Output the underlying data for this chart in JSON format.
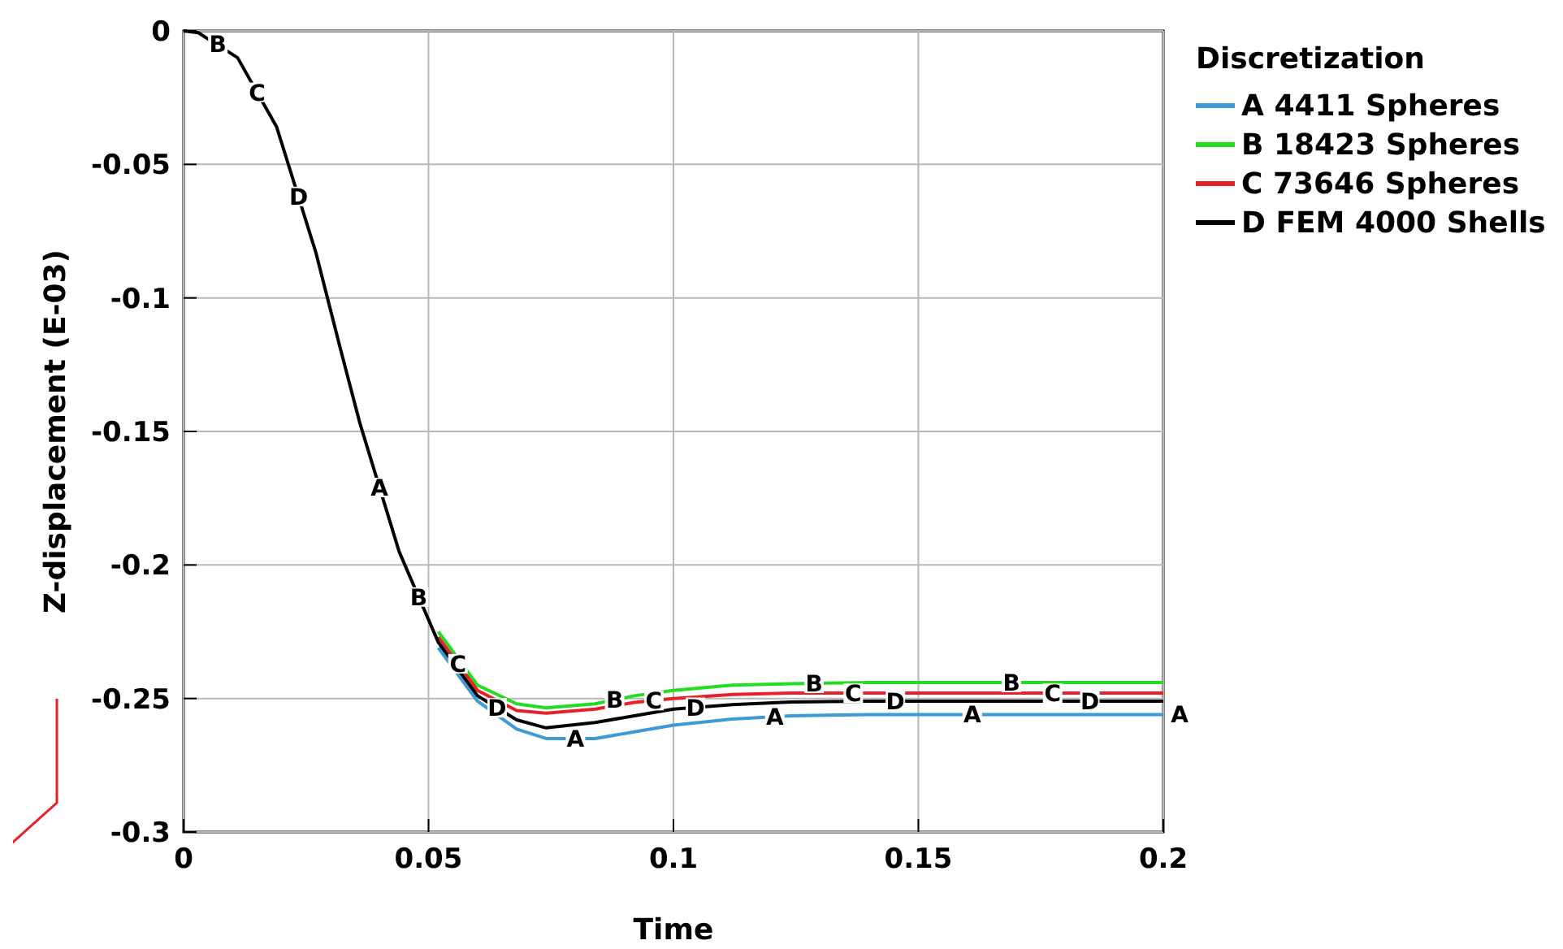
{
  "chart_data": {
    "type": "line",
    "xlabel": "Time",
    "ylabel": "Z-displacement (E-03)",
    "legend_title": "Discretization",
    "legend": "right",
    "grid": true,
    "line_style": "solid",
    "marker": "none",
    "xlim": [
      0,
      0.2
    ],
    "xticks": [
      0,
      0.05,
      0.1,
      0.15,
      0.2
    ],
    "ylim": [
      -0.3,
      0
    ],
    "yticks": [
      0,
      -0.05,
      -0.1,
      -0.15,
      -0.2,
      -0.25,
      -0.3
    ],
    "x": [
      0,
      0.003,
      0.011,
      0.019,
      0.027,
      0.032,
      0.036,
      0.044,
      0.052,
      0.06,
      0.068,
      0.074,
      0.084,
      0.092,
      0.1,
      0.112,
      0.124,
      0.14,
      0.155,
      0.165,
      0.1812,
      0.2
    ],
    "series": [
      {
        "name": "A 4411 Spheres",
        "color": "#3c9ad6",
        "values": [
          null,
          null,
          null,
          null,
          null,
          null,
          null,
          null,
          -0.231,
          -0.251,
          -0.2615,
          -0.265,
          -0.265,
          -0.2625,
          -0.26,
          -0.2577,
          -0.2565,
          -0.256,
          -0.256,
          -0.256,
          -0.256,
          -0.256
        ]
      },
      {
        "name": "B 18423 Spheres",
        "color": "#22dd22",
        "values": [
          null,
          null,
          null,
          null,
          null,
          null,
          null,
          null,
          -0.225,
          -0.245,
          -0.252,
          -0.2535,
          -0.252,
          -0.249,
          -0.247,
          -0.245,
          -0.2445,
          -0.244,
          -0.244,
          -0.244,
          -0.244,
          -0.244
        ]
      },
      {
        "name": "C 73646 Spheres",
        "color": "#e8202a",
        "values": [
          null,
          null,
          null,
          null,
          null,
          null,
          null,
          null,
          -0.227,
          -0.247,
          -0.2545,
          -0.2555,
          -0.254,
          -0.2515,
          -0.25,
          -0.2485,
          -0.248,
          -0.248,
          -0.248,
          -0.248,
          -0.248,
          -0.248
        ]
      },
      {
        "name": "D FEM 4000 Shells",
        "color": "#000000",
        "values": [
          0,
          -0.0007,
          -0.01,
          -0.036,
          -0.083,
          -0.119,
          -0.147,
          -0.195,
          -0.229,
          -0.249,
          -0.258,
          -0.261,
          -0.259,
          -0.2565,
          -0.254,
          -0.2523,
          -0.2513,
          -0.251,
          -0.251,
          -0.251,
          -0.251,
          -0.251
        ]
      }
    ],
    "annotations": [
      {
        "text": "B",
        "x": 0.007,
        "y": -0.005
      },
      {
        "text": "C",
        "x": 0.015,
        "y": -0.023
      },
      {
        "text": "D",
        "x": 0.0235,
        "y": -0.062
      },
      {
        "text": "A",
        "x": 0.04,
        "y": -0.171
      },
      {
        "text": "B",
        "x": 0.048,
        "y": -0.212
      },
      {
        "text": "C",
        "x": 0.056,
        "y": -0.237
      },
      {
        "text": "D",
        "x": 0.064,
        "y": -0.2535
      },
      {
        "text": "A",
        "x": 0.08,
        "y": -0.265
      },
      {
        "text": "B",
        "x": 0.088,
        "y": -0.2505
      },
      {
        "text": "C",
        "x": 0.096,
        "y": -0.2508
      },
      {
        "text": "D",
        "x": 0.1045,
        "y": -0.2533
      },
      {
        "text": "A",
        "x": 0.1207,
        "y": -0.2568
      },
      {
        "text": "B",
        "x": 0.1287,
        "y": -0.2443
      },
      {
        "text": "C",
        "x": 0.1367,
        "y": -0.248
      },
      {
        "text": "D",
        "x": 0.1453,
        "y": -0.251
      },
      {
        "text": "A",
        "x": 0.161,
        "y": -0.256
      },
      {
        "text": "B",
        "x": 0.169,
        "y": -0.244
      },
      {
        "text": "C",
        "x": 0.1774,
        "y": -0.248
      },
      {
        "text": "D",
        "x": 0.185,
        "y": -0.251
      },
      {
        "text": "A",
        "x": 0.2,
        "y": -0.256
      }
    ]
  }
}
